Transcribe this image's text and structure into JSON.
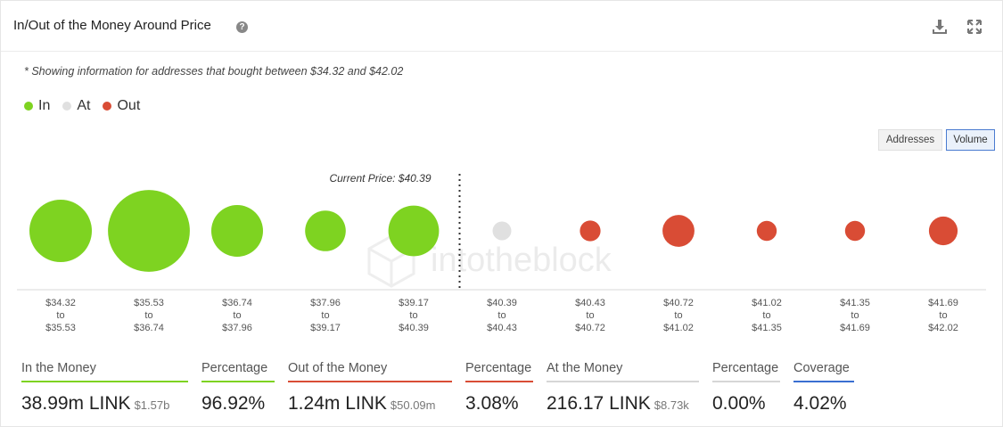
{
  "header": {
    "title": "In/Out of the Money Around Price",
    "help": "?"
  },
  "note": "* Showing information for addresses that bought between $34.32 and $42.02",
  "legend": [
    {
      "label": "In",
      "color": "#7ed321"
    },
    {
      "label": "At",
      "color": "#e0e0e0"
    },
    {
      "label": "Out",
      "color": "#d94c35"
    }
  ],
  "toggles": {
    "addresses": "Addresses",
    "volume": "Volume",
    "selected": "Volume"
  },
  "watermark": "intotheblock",
  "chart_data": {
    "type": "scatter",
    "title": "",
    "current_price_label": "Current Price: $40.39",
    "current_price_after_index": 4,
    "ranges": [
      {
        "from": "$34.32",
        "to": "$35.53",
        "status": "in",
        "size": 1.0
      },
      {
        "from": "$35.53",
        "to": "$36.74",
        "status": "in",
        "size": 1.31
      },
      {
        "from": "$36.74",
        "to": "$37.96",
        "status": "in",
        "size": 0.83
      },
      {
        "from": "$37.96",
        "to": "$39.17",
        "status": "in",
        "size": 0.65
      },
      {
        "from": "$39.17",
        "to": "$40.39",
        "status": "in",
        "size": 0.81
      },
      {
        "from": "$40.39",
        "to": "$40.43",
        "status": "at",
        "size": 0.3
      },
      {
        "from": "$40.43",
        "to": "$40.72",
        "status": "out",
        "size": 0.33
      },
      {
        "from": "$40.72",
        "to": "$41.02",
        "status": "out",
        "size": 0.51
      },
      {
        "from": "$41.02",
        "to": "$41.35",
        "status": "out",
        "size": 0.32
      },
      {
        "from": "$41.35",
        "to": "$41.69",
        "status": "out",
        "size": 0.32
      },
      {
        "from": "$41.69",
        "to": "$42.02",
        "status": "out",
        "size": 0.46
      }
    ],
    "range_connector": "to",
    "colors": {
      "in": "#7ed321",
      "at": "#e0e0e0",
      "out": "#d94c35"
    }
  },
  "stats": {
    "in_money": {
      "label": "In the Money",
      "value": "38.99m LINK",
      "sub": "$1.57b",
      "color": "#7ed321"
    },
    "in_pct": {
      "label": "Percentage",
      "value": "96.92%",
      "color": "#7ed321"
    },
    "out_money": {
      "label": "Out of the Money",
      "value": "1.24m LINK",
      "sub": "$50.09m",
      "color": "#d94c35"
    },
    "out_pct": {
      "label": "Percentage",
      "value": "3.08%",
      "color": "#d94c35"
    },
    "at_money": {
      "label": "At the Money",
      "value": "216.17 LINK",
      "sub": "$8.73k",
      "color": "#d6d6d6"
    },
    "at_pct": {
      "label": "Percentage",
      "value": "0.00%",
      "color": "#d6d6d6"
    },
    "coverage": {
      "label": "Coverage",
      "value": "4.02%",
      "color": "#3a6fd1"
    }
  }
}
